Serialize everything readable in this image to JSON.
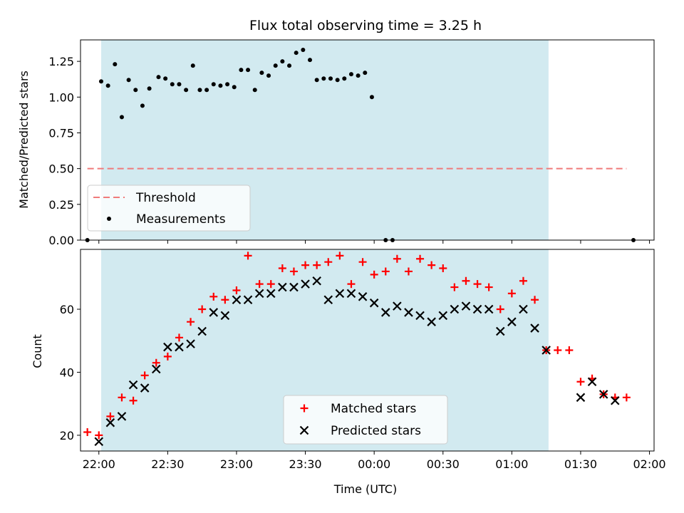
{
  "chart_data": [
    {
      "type": "scatter",
      "title": "Flux total observing time = 3.25 h",
      "ylabel": "Matched/Predicted stars",
      "xlim": [
        "21:52",
        "02:02"
      ],
      "ylim": [
        0,
        1.4
      ],
      "yticks": [
        "0.00",
        "0.25",
        "0.50",
        "0.75",
        "1.00",
        "1.25"
      ],
      "legend_position": "lower-left",
      "observing_window": [
        "22:01",
        "01:16"
      ],
      "shade_color": "#d2eaf0",
      "series": [
        {
          "name": "Threshold",
          "style": "dashed-line",
          "color": "#f07b7b",
          "x": [
            "21:55",
            "01:50"
          ],
          "y": [
            0.5,
            0.5
          ]
        },
        {
          "name": "Measurements",
          "style": "dot",
          "color": "#000000",
          "x": [
            "21:55",
            "22:01",
            "22:04",
            "22:07",
            "22:10",
            "22:13",
            "22:16",
            "22:19",
            "22:22",
            "22:26",
            "22:29",
            "22:32",
            "22:35",
            "22:38",
            "22:41",
            "22:44",
            "22:47",
            "22:50",
            "22:53",
            "22:56",
            "22:59",
            "23:02",
            "23:05",
            "23:08",
            "23:11",
            "23:14",
            "23:17",
            "23:20",
            "23:23",
            "23:26",
            "23:29",
            "23:32",
            "23:35",
            "23:38",
            "23:41",
            "23:44",
            "23:47",
            "23:50",
            "23:53",
            "23:56",
            "23:59",
            "00:02",
            "00:05",
            "00:08",
            "00:11",
            "00:14",
            "00:17",
            "00:20",
            "00:23",
            "00:26",
            "00:29",
            "00:32",
            "00:35",
            "00:38",
            "00:41",
            "00:44",
            "00:47",
            "00:50",
            "00:53",
            "00:56",
            "00:59",
            "01:02",
            "01:05",
            "01:08",
            "01:11",
            "01:14",
            "01:17",
            "01:20",
            "01:23",
            "01:26",
            "01:29",
            "01:32",
            "01:35",
            "01:38",
            "01:41",
            "01:44",
            "01:47",
            "01:50",
            "01:53"
          ],
          "y": [
            0.0,
            1.11,
            1.08,
            1.23,
            0.86,
            1.12,
            1.05,
            0.94,
            1.06,
            1.14,
            1.13,
            1.09,
            1.09,
            1.05,
            1.22,
            1.05,
            1.05,
            1.09,
            1.08,
            1.09,
            1.07,
            1.19,
            1.19,
            1.05,
            1.17,
            1.15,
            1.22,
            1.25,
            1.22,
            1.31,
            1.33,
            1.26,
            1.12,
            1.13,
            1.13,
            1.12,
            1.13,
            1.16,
            1.15,
            1.17,
            1.0,
            null,
            0.0,
            0.0,
            null,
            null,
            null,
            null,
            null,
            null,
            null,
            null,
            null,
            null,
            null,
            null,
            null,
            null,
            null,
            null,
            null,
            null,
            null,
            null,
            null,
            null,
            null,
            null,
            null,
            null,
            null,
            null,
            null,
            null,
            null,
            null,
            null,
            null,
            0.0
          ]
        }
      ]
    },
    {
      "type": "scatter",
      "ylabel": "Count",
      "xlabel": "Time (UTC)",
      "xlim": [
        "21:52",
        "02:02"
      ],
      "ylim": [
        15,
        79
      ],
      "yticks": [
        "20",
        "40",
        "60"
      ],
      "xticks": [
        "22:00",
        "22:30",
        "23:00",
        "23:30",
        "00:00",
        "00:30",
        "01:00",
        "01:30",
        "02:00"
      ],
      "legend_position": "lower-center",
      "observing_window": [
        "22:01",
        "01:16"
      ],
      "series": [
        {
          "name": "Matched stars",
          "style": "plus",
          "color": "#ff0000",
          "x": [
            "21:55",
            "22:00",
            "22:05",
            "22:10",
            "22:15",
            "22:20",
            "22:25",
            "22:30",
            "22:35",
            "22:40",
            "22:45",
            "22:50",
            "22:55",
            "23:00",
            "23:05",
            "23:10",
            "23:15",
            "23:20",
            "23:25",
            "23:30",
            "23:35",
            "23:40",
            "23:45",
            "23:50",
            "23:55",
            "00:00",
            "00:05",
            "00:10",
            "00:15",
            "00:20",
            "00:25",
            "00:30",
            "00:35",
            "00:40",
            "00:45",
            "00:50",
            "00:55",
            "01:00",
            "01:05",
            "01:10",
            "01:15",
            "01:20",
            "01:25",
            "01:30",
            "01:35",
            "01:40",
            "01:45",
            "01:50"
          ],
          "y": [
            21,
            20,
            26,
            32,
            31,
            39,
            43,
            45,
            51,
            56,
            60,
            64,
            63,
            66,
            77,
            68,
            68,
            73,
            72,
            74,
            74,
            75,
            77,
            68,
            75,
            71,
            72,
            76,
            72,
            76,
            74,
            73,
            67,
            69,
            68,
            67,
            60,
            65,
            69,
            63,
            47,
            47,
            47,
            37,
            38,
            33,
            32,
            32
          ]
        },
        {
          "name": "Predicted stars",
          "style": "x",
          "color": "#000000",
          "x": [
            "22:00",
            "22:05",
            "22:10",
            "22:15",
            "22:20",
            "22:25",
            "22:30",
            "22:35",
            "22:40",
            "22:45",
            "22:50",
            "22:55",
            "23:00",
            "23:05",
            "23:10",
            "23:15",
            "23:20",
            "23:25",
            "23:30",
            "23:35",
            "23:40",
            "23:45",
            "23:50",
            "23:55",
            "00:00",
            "00:05",
            "00:10",
            "00:15",
            "00:20",
            "00:25",
            "00:30",
            "00:35",
            "00:40",
            "00:45",
            "00:50",
            "00:55",
            "01:00",
            "01:05",
            "01:10",
            "01:15",
            "01:30",
            "01:35",
            "01:40",
            "01:45"
          ],
          "y": [
            18,
            24,
            26,
            36,
            35,
            41,
            48,
            48,
            49,
            53,
            59,
            58,
            63,
            63,
            65,
            65,
            67,
            67,
            68,
            69,
            63,
            65,
            65,
            64,
            62,
            59,
            61,
            59,
            58,
            56,
            58,
            60,
            61,
            60,
            60,
            53,
            56,
            60,
            54,
            47,
            32,
            37,
            33,
            31
          ]
        }
      ]
    }
  ]
}
